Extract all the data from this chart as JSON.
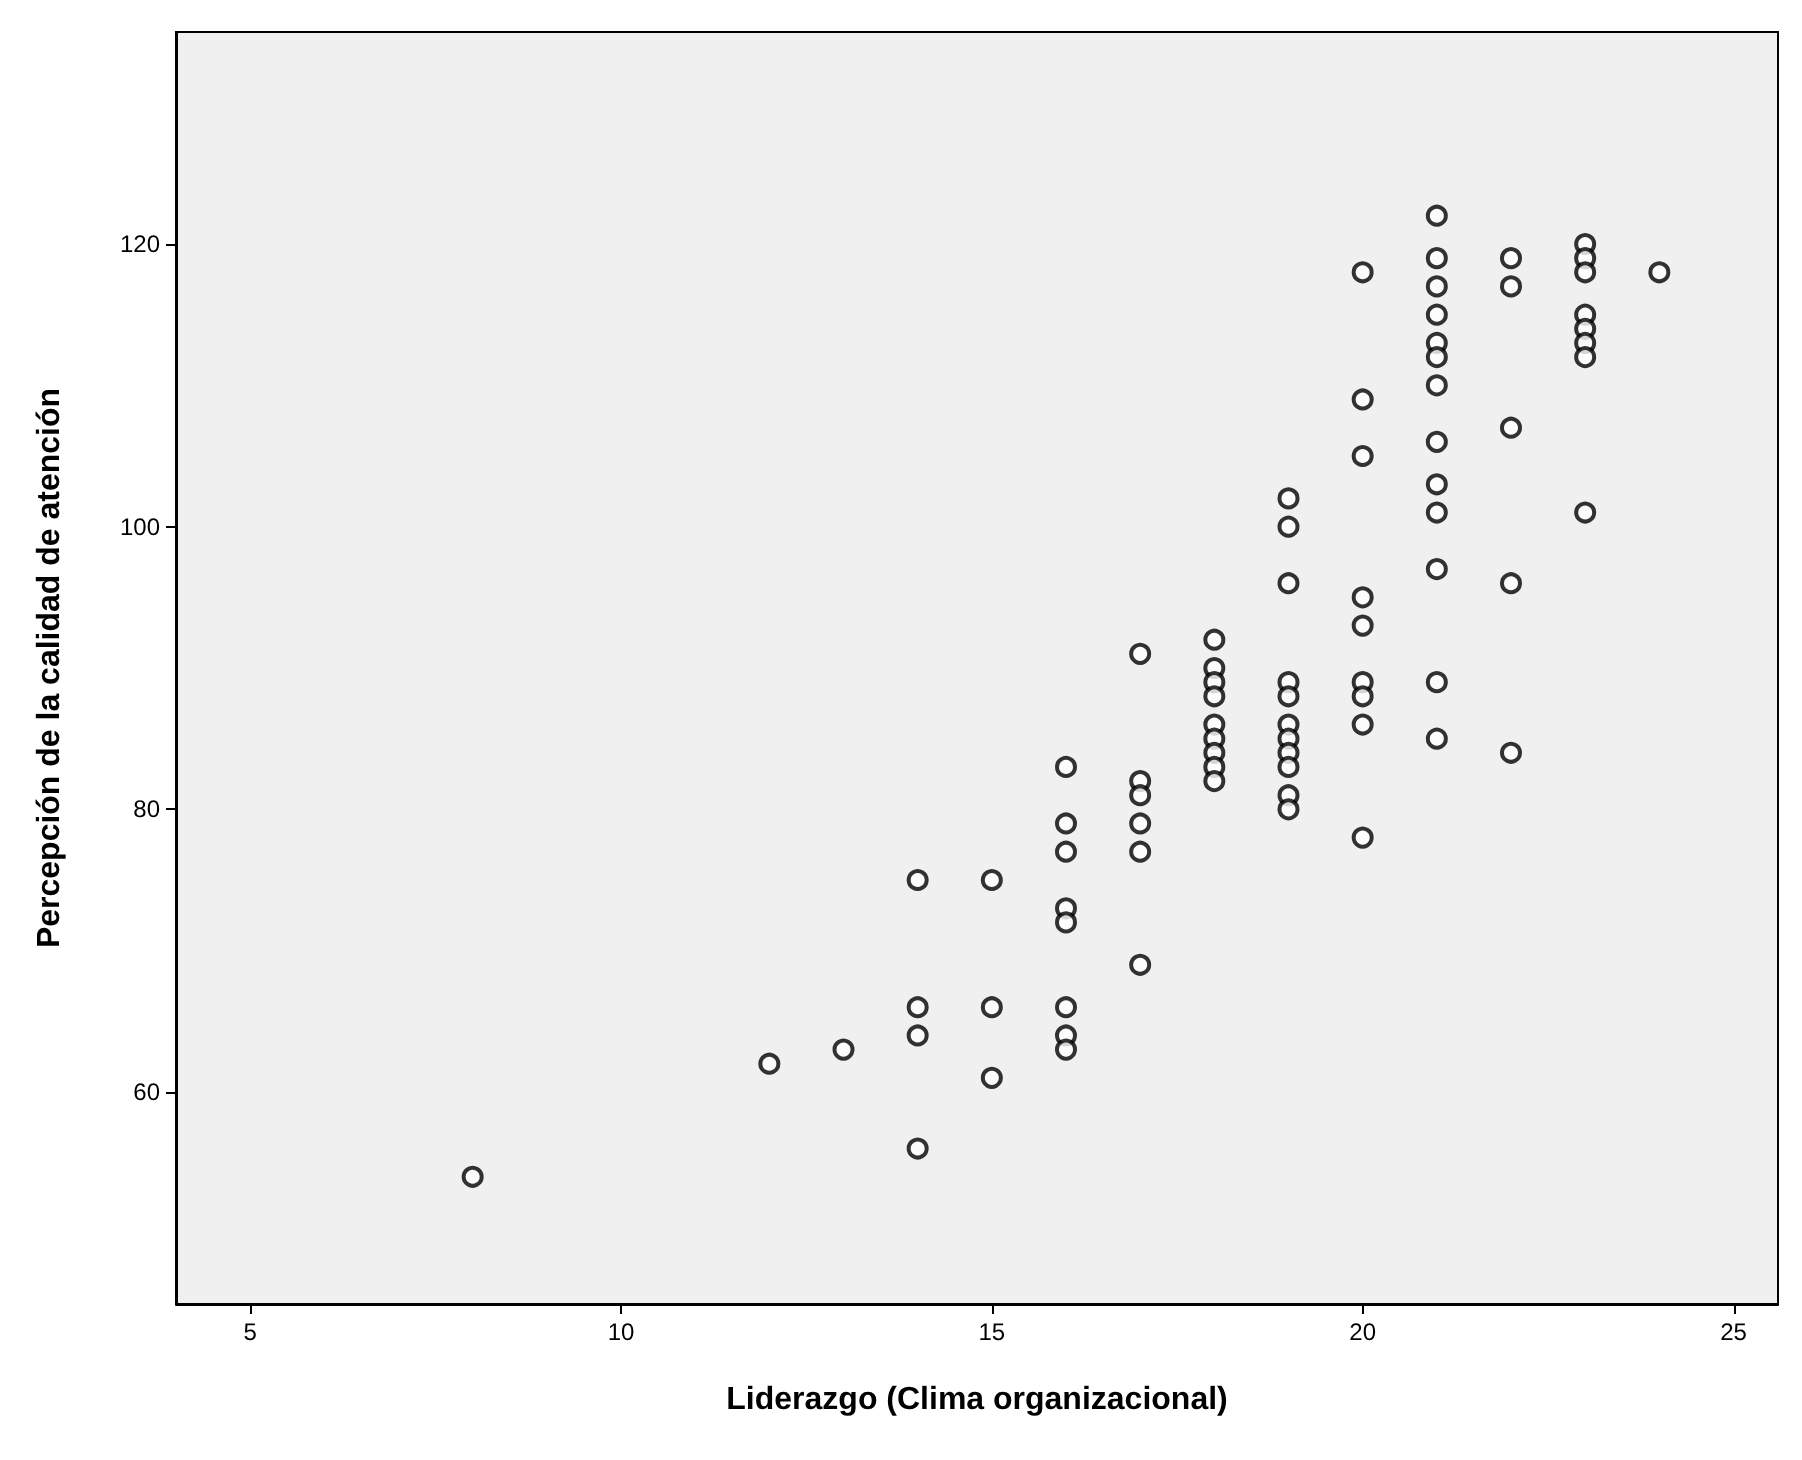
{
  "chart_data": {
    "type": "scatter",
    "xlabel": "Liderazgo (Clima organizacional)",
    "ylabel": "Percepción de la calidad de atención",
    "x": [
      8,
      12,
      13,
      14,
      14,
      14,
      14,
      15,
      15,
      15,
      16,
      16,
      16,
      16,
      16,
      16,
      16,
      16,
      17,
      17,
      17,
      17,
      17,
      17,
      18,
      18,
      18,
      18,
      18,
      18,
      18,
      18,
      18,
      19,
      19,
      19,
      19,
      19,
      19,
      19,
      19,
      19,
      19,
      19,
      20,
      20,
      20,
      20,
      20,
      20,
      20,
      20,
      20,
      21,
      21,
      21,
      21,
      21,
      21,
      21,
      21,
      21,
      21,
      21,
      21,
      21,
      22,
      22,
      22,
      22,
      22,
      23,
      23,
      23,
      23,
      23,
      23,
      23,
      23,
      24
    ],
    "series": [
      {
        "color": "#000000",
        "values": [
          54,
          62,
          63,
          75,
          66,
          64,
          56,
          75,
          66,
          61,
          83,
          79,
          77,
          73,
          72,
          66,
          64,
          63,
          91,
          82,
          81,
          79,
          77,
          69,
          92,
          90,
          89,
          88,
          86,
          85,
          84,
          83,
          82,
          102,
          100,
          96,
          89,
          88,
          86,
          85,
          84,
          83,
          81,
          80,
          118,
          109,
          105,
          95,
          93,
          89,
          88,
          86,
          78,
          122,
          119,
          117,
          115,
          113,
          112,
          110,
          106,
          103,
          101,
          97,
          89,
          85,
          119,
          117,
          107,
          96,
          84,
          120,
          119,
          118,
          115,
          114,
          113,
          112,
          101,
          118
        ]
      }
    ],
    "xlim": [
      4,
      25.6
    ],
    "ylim": [
      45,
      135
    ],
    "xticks": [
      5,
      10,
      15,
      20,
      25
    ],
    "yticks": [
      60,
      80,
      100,
      120
    ],
    "grid": false,
    "marker": "circle"
  }
}
